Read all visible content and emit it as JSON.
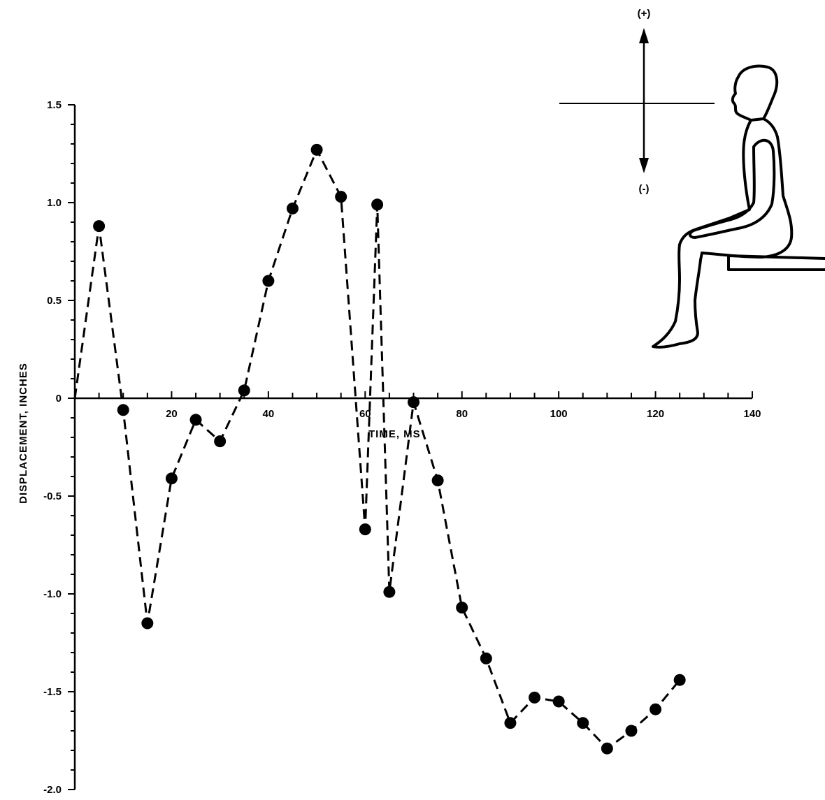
{
  "chart_data": {
    "type": "line",
    "xlabel": "TIME, MS",
    "ylabel": "DISPLACEMENT,  INCHES",
    "xlim": [
      0,
      140
    ],
    "ylim": [
      -2.0,
      1.5
    ],
    "x_ticks": [
      20,
      40,
      60,
      80,
      100,
      120,
      140
    ],
    "y_ticks": [
      1.5,
      1.0,
      0.5,
      0,
      -0.5,
      -1.0,
      -1.5,
      -2.0
    ],
    "y_tick_labels": [
      "1.5",
      "1.0",
      "0.5",
      "0",
      "-0.5",
      "-1.0",
      "-1.5",
      "-2.0"
    ],
    "line_style": "dashed",
    "marker": "filled-circle",
    "series": [
      {
        "x": [
          0,
          5,
          10,
          15,
          20,
          25,
          30,
          35,
          40,
          45,
          50,
          55,
          60,
          62.5,
          65,
          70,
          75,
          80,
          85,
          90,
          95,
          100,
          105,
          110,
          115,
          120,
          125
        ],
        "y": [
          0,
          0.88,
          -0.06,
          -1.15,
          -0.41,
          -0.11,
          -0.22,
          0.04,
          0.6,
          0.97,
          1.27,
          1.03,
          -0.67,
          0.99,
          -0.99,
          -0.02,
          -0.42,
          -1.07,
          -1.33,
          -1.66,
          -1.53,
          -1.55,
          -1.66,
          -1.79,
          -1.7,
          -1.59,
          -1.44
        ],
        "markers": [
          false,
          true,
          true,
          true,
          true,
          true,
          true,
          true,
          true,
          true,
          true,
          true,
          true,
          true,
          true,
          true,
          true,
          true,
          true,
          true,
          true,
          true,
          true,
          true,
          true,
          true,
          true
        ]
      }
    ],
    "inset": {
      "description_icon": "seated-occupant-icon",
      "positive_label": "(+)",
      "negative_label": "(-)"
    }
  }
}
